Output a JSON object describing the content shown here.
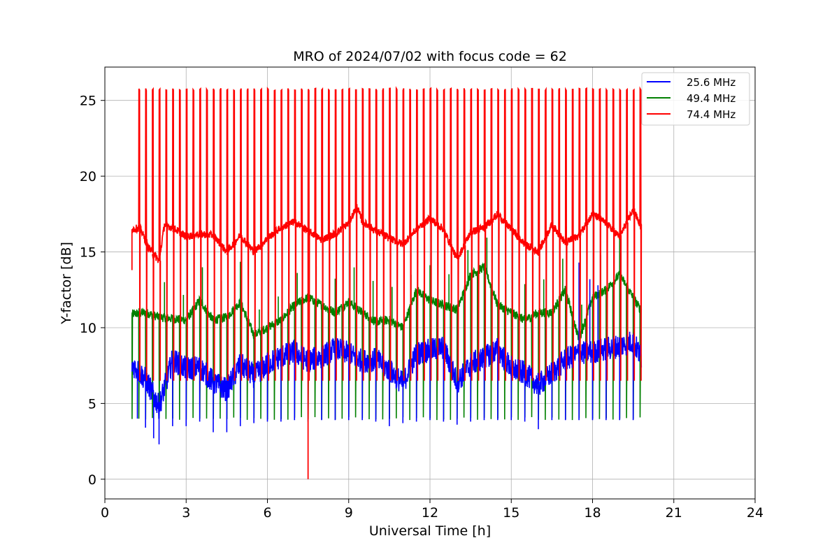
{
  "chart_data": {
    "type": "line",
    "title": "MRO of 2024/07/02 with focus code = 62",
    "xlabel": "Universal Time [h]",
    "ylabel": "Y-factor [dB]",
    "xlim": [
      0,
      24
    ],
    "ylim": [
      -1.3,
      27.2
    ],
    "xticks": [
      0,
      3,
      6,
      9,
      12,
      15,
      18,
      21,
      24
    ],
    "yticks": [
      0,
      5,
      10,
      15,
      20,
      25
    ],
    "grid": true,
    "legend_position": "top-right",
    "colors": {
      "25.6 MHz": "#0000ff",
      "49.4 MHz": "#008000",
      "74.4 MHz": "#ff0000"
    },
    "series": [
      {
        "name": "25.6 MHz",
        "color": "#0000ff",
        "x": [
          1.0,
          1.5,
          2.0,
          2.5,
          3.0,
          3.5,
          4.0,
          4.5,
          5.0,
          5.5,
          6.0,
          6.5,
          7.0,
          7.5,
          8.0,
          8.5,
          9.0,
          9.5,
          10.0,
          10.5,
          11.0,
          11.5,
          12.0,
          12.5,
          13.0,
          13.5,
          14.0,
          14.5,
          15.0,
          15.5,
          16.0,
          16.5,
          17.0,
          17.5,
          18.0,
          18.5,
          19.0,
          19.5,
          19.8
        ],
        "values": [
          7.6,
          6.6,
          4.8,
          7.9,
          7.3,
          7.4,
          6.4,
          5.9,
          7.6,
          6.8,
          7.6,
          8.1,
          8.4,
          7.8,
          8.1,
          8.6,
          8.3,
          7.8,
          7.9,
          7.2,
          6.3,
          8.3,
          8.5,
          8.7,
          6.4,
          7.6,
          8.0,
          8.6,
          7.3,
          7.0,
          6.2,
          7.0,
          7.9,
          8.3,
          8.4,
          8.6,
          8.8,
          9.1,
          8.0
        ],
        "spike_low": [
          1.2,
          1.5,
          1.8,
          2.0,
          2.5,
          3.0,
          3.5,
          4.0,
          4.5,
          5.0,
          5.5,
          6.0,
          6.5,
          7.0,
          7.5,
          8.0,
          8.5,
          9.0,
          9.5,
          10.0,
          10.5,
          11.0,
          11.5,
          12.0,
          12.5,
          13.0,
          13.5,
          14.0,
          14.5,
          15.0,
          15.5,
          16.0,
          16.5,
          17.0,
          17.5,
          18.0,
          18.5,
          19.0,
          19.5
        ],
        "spike_low_values": [
          4.0,
          3.4,
          2.7,
          2.3,
          3.5,
          3.5,
          3.8,
          3.1,
          3.1,
          3.5,
          3.7,
          3.8,
          3.8,
          3.9,
          3.8,
          3.9,
          3.9,
          3.9,
          3.9,
          3.8,
          3.5,
          3.7,
          3.8,
          3.9,
          3.8,
          3.6,
          3.8,
          3.9,
          3.9,
          3.9,
          3.8,
          3.3,
          3.9,
          3.9,
          3.9,
          3.9,
          3.9,
          3.9,
          3.9
        ],
        "spike_high": [
          17.5,
          17.9,
          18.2
        ],
        "spike_high_values": [
          14.3,
          13.2,
          12.8
        ]
      },
      {
        "name": "49.4 MHz",
        "color": "#008000",
        "x": [
          1.0,
          1.5,
          2.0,
          2.5,
          3.0,
          3.5,
          4.0,
          4.5,
          5.0,
          5.5,
          6.0,
          6.5,
          7.0,
          7.5,
          8.0,
          8.5,
          9.0,
          9.5,
          10.0,
          10.5,
          11.0,
          11.5,
          12.0,
          12.5,
          13.0,
          13.5,
          14.0,
          14.5,
          15.0,
          15.5,
          16.0,
          16.5,
          17.0,
          17.5,
          18.0,
          18.5,
          19.0,
          19.5,
          19.8
        ],
        "values": [
          10.9,
          11.0,
          10.7,
          10.6,
          10.5,
          11.8,
          10.5,
          10.7,
          11.7,
          9.5,
          10.0,
          10.5,
          11.5,
          12.0,
          11.5,
          11.0,
          11.7,
          11.0,
          10.4,
          10.5,
          10.0,
          12.5,
          11.8,
          11.5,
          11.2,
          13.5,
          14.0,
          11.5,
          11.0,
          10.5,
          11.0,
          11.0,
          12.5,
          9.2,
          12.0,
          12.5,
          13.5,
          12.0,
          11.1
        ],
        "spike_low": [
          1.0,
          1.5,
          2.0,
          2.5,
          3.0,
          3.5,
          4.0,
          4.5,
          5.0,
          5.5,
          6.0,
          6.5,
          7.0,
          7.5,
          8.0,
          8.5,
          9.0,
          9.5,
          10.0,
          10.5,
          11.0,
          11.5,
          12.0,
          12.5,
          13.0,
          13.5,
          14.0,
          14.5,
          15.0,
          15.5,
          16.0,
          16.5,
          17.0,
          17.5,
          18.0,
          18.5,
          19.0,
          19.5,
          19.8
        ],
        "spike_low_values": [
          3.9,
          3.8,
          3.9,
          3.8,
          3.8,
          3.8,
          3.8,
          3.7,
          3.8,
          3.8,
          3.8,
          3.8,
          3.8,
          3.8,
          3.8,
          3.8,
          3.8,
          3.8,
          3.8,
          3.8,
          3.8,
          3.8,
          3.8,
          3.8,
          3.8,
          3.8,
          3.8,
          3.8,
          3.8,
          3.8,
          3.8,
          3.8,
          3.8,
          3.8,
          3.8,
          3.8,
          3.8,
          3.8,
          3.9
        ]
      },
      {
        "name": "74.4 MHz",
        "color": "#ff0000",
        "x": [
          1.0,
          1.3,
          1.6,
          2.0,
          2.2,
          2.6,
          3.0,
          3.5,
          4.0,
          4.5,
          5.0,
          5.5,
          6.0,
          6.5,
          7.0,
          7.5,
          8.0,
          8.5,
          9.0,
          9.3,
          9.5,
          10.0,
          10.5,
          11.0,
          11.5,
          12.0,
          12.5,
          13.0,
          13.5,
          14.0,
          14.5,
          15.0,
          15.5,
          16.0,
          16.5,
          17.0,
          17.5,
          18.0,
          18.5,
          19.0,
          19.5,
          19.8
        ],
        "values": [
          16.5,
          16.6,
          15.3,
          14.4,
          16.8,
          16.5,
          16.0,
          16.2,
          16.1,
          15.0,
          16.1,
          15.0,
          15.9,
          16.6,
          17.0,
          16.4,
          15.8,
          16.2,
          16.9,
          18.0,
          17.0,
          16.4,
          15.9,
          15.5,
          16.5,
          17.2,
          16.5,
          14.5,
          16.3,
          16.6,
          17.5,
          16.5,
          15.5,
          15.0,
          16.8,
          15.6,
          16.1,
          17.5,
          16.9,
          16.0,
          17.8,
          16.6
        ],
        "spike_high_period": 0.25,
        "spike_high_value": 25.8,
        "spike_low_value": 6.5,
        "outlier": {
          "x": 7.5,
          "y": 0.0
        }
      }
    ]
  }
}
